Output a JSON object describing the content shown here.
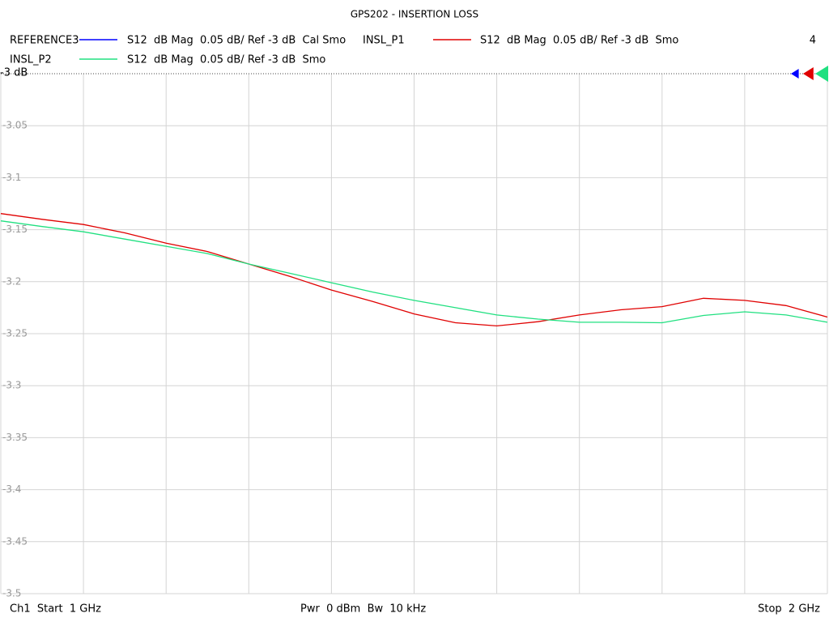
{
  "chart_data": {
    "type": "line",
    "title": "GPS202 - INSERTION LOSS",
    "marker_count": "4",
    "footer": {
      "start": "Ch1  Start  1 GHz",
      "power": "Pwr  0 dBm  Bw  10 kHz",
      "stop": "Stop  2 GHz"
    },
    "xlim": [
      1,
      2
    ],
    "x_divisions": 10,
    "ylim": [
      -3.5,
      -3
    ],
    "yticks": [
      {
        "value": -3,
        "label": "-3 dB"
      },
      -3.05,
      -3.1,
      -3.15,
      -3.2,
      -3.25,
      -3.3,
      -3.35,
      -3.4,
      -3.45,
      -3.5
    ],
    "grid": true,
    "x": [
      1,
      1.05,
      1.1,
      1.15,
      1.2,
      1.25,
      1.3,
      1.35,
      1.4,
      1.45,
      1.5,
      1.55,
      1.6,
      1.65,
      1.7,
      1.75,
      1.8,
      1.85,
      1.9,
      1.95,
      2
    ],
    "series": [
      {
        "name": "REFERENCE3",
        "description": "S12  dB Mag  0.05 dB/ Ref -3 dB  Cal Smo",
        "color": "#0000ff",
        "values": [
          null,
          null,
          null,
          null,
          null,
          null,
          null,
          null,
          null,
          null,
          null,
          null,
          null,
          null,
          null,
          null,
          null,
          null,
          null,
          null,
          null
        ]
      },
      {
        "name": "INSL_P1",
        "description": "S12  dB Mag  0.05 dB/ Ref -3 dB  Smo",
        "color": "#e00000",
        "values": [
          -3.1345,
          -3.14,
          -3.145,
          -3.153,
          -3.163,
          -3.171,
          -3.183,
          -3.195,
          -3.208,
          -3.219,
          -3.231,
          -3.2395,
          -3.2425,
          -3.2385,
          -3.232,
          -3.227,
          -3.224,
          -3.216,
          -3.218,
          -3.223,
          -3.234
        ]
      },
      {
        "name": "INSL_P2",
        "description": "S12  dB Mag  0.05 dB/ Ref -3 dB  Smo",
        "color": "#20e080",
        "values": [
          -3.1415,
          -3.147,
          -3.152,
          -3.159,
          -3.166,
          -3.173,
          -3.183,
          -3.192,
          -3.201,
          -3.21,
          -3.218,
          -3.225,
          -3.232,
          -3.236,
          -3.239,
          -3.239,
          -3.2395,
          -3.2325,
          -3.229,
          -3.232,
          -3.239
        ]
      }
    ]
  }
}
